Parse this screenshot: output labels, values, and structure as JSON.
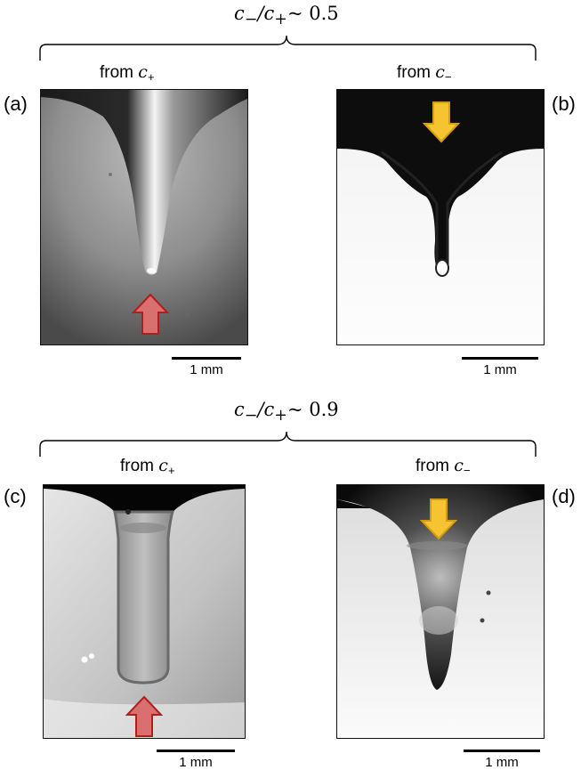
{
  "top_group": {
    "ratio_prefix": "c",
    "ratio_sub1": "−",
    "ratio_mid": "/c",
    "ratio_sub2": "+",
    "ratio_value": "~ 0.5",
    "from_left": "from c+",
    "from_right": "from c−"
  },
  "bottom_group": {
    "ratio_prefix": "c",
    "ratio_sub1": "−",
    "ratio_mid": "/c",
    "ratio_sub2": "+",
    "ratio_value": "~ 0.9",
    "from_left": "from c+",
    "from_right": "from c−"
  },
  "panels": {
    "a": {
      "label": "(a)",
      "scale": "1 mm"
    },
    "b": {
      "label": "(b)",
      "scale": "1 mm"
    },
    "c": {
      "label": "(c)",
      "scale": "1 mm"
    },
    "d": {
      "label": "(d)",
      "scale": "1 mm"
    }
  },
  "colors": {
    "red_arrow_fill": "#d9706f",
    "red_arrow_stroke": "#b21e1e",
    "yellow_arrow_fill": "#f6c431",
    "yellow_arrow_stroke": "#d59a16"
  }
}
